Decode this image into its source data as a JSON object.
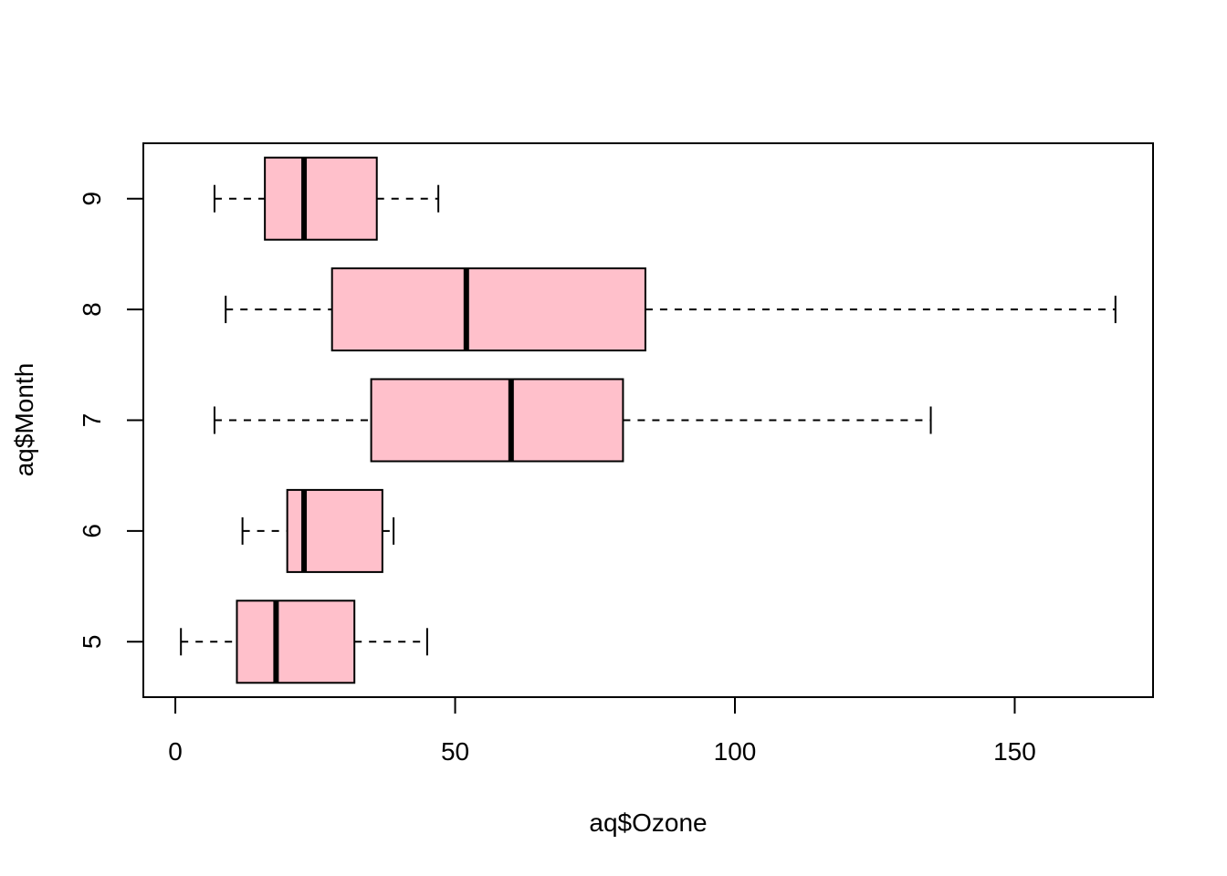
{
  "chart_data": {
    "type": "boxplot",
    "orientation": "horizontal",
    "title": "",
    "xlabel": "aq$Ozone",
    "ylabel": "aq$Month",
    "xlim": [
      -5.72,
      174.72
    ],
    "x_ticks": [
      0,
      50,
      100,
      150
    ],
    "x_tick_labels": [
      "0",
      "50",
      "100",
      "150"
    ],
    "categories": [
      "5",
      "6",
      "7",
      "8",
      "9"
    ],
    "box_fill": "#FFC0CB",
    "line_color": "#000000",
    "series": [
      {
        "category": "5",
        "whisker_low": 1,
        "q1": 11,
        "median": 18,
        "q3": 32,
        "whisker_high": 45
      },
      {
        "category": "6",
        "whisker_low": 12,
        "q1": 20,
        "median": 23,
        "q3": 37,
        "whisker_high": 39
      },
      {
        "category": "7",
        "whisker_low": 7,
        "q1": 35,
        "median": 60,
        "q3": 80,
        "whisker_high": 135
      },
      {
        "category": "8",
        "whisker_low": 9,
        "q1": 28,
        "median": 52,
        "q3": 84,
        "whisker_high": 168
      },
      {
        "category": "9",
        "whisker_low": 7,
        "q1": 16,
        "median": 23,
        "q3": 36,
        "whisker_high": 47
      }
    ],
    "grid": false,
    "legend": "none"
  }
}
